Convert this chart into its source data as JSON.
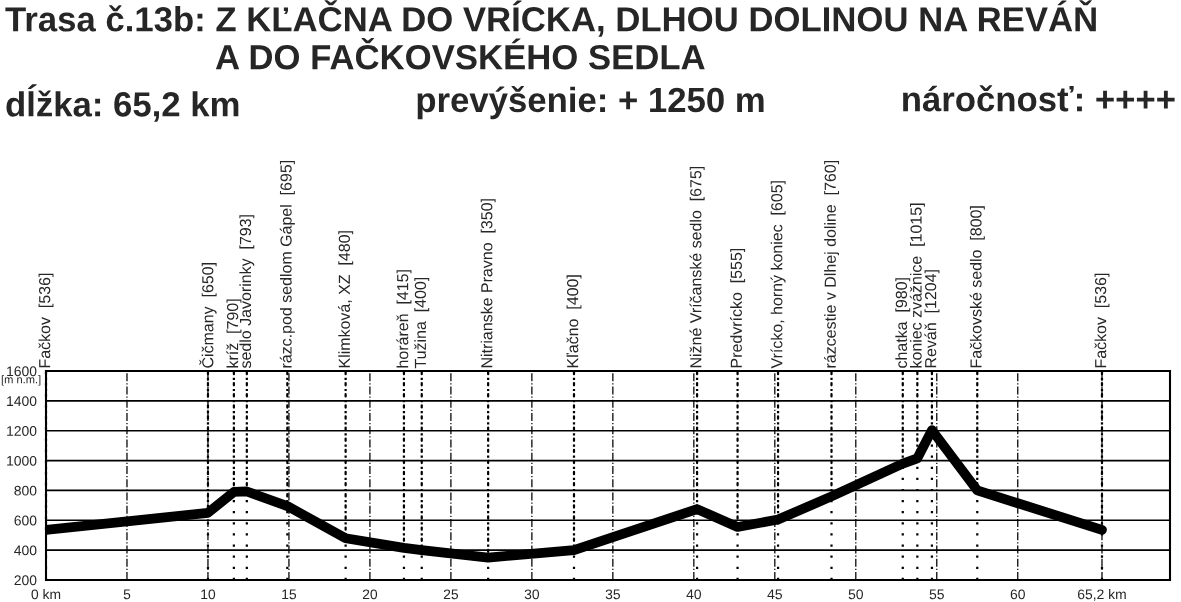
{
  "chart_data": {
    "type": "line",
    "title": "Trasa č.13b: Z KĽAČNA DO VRÍCKA, DLHOU DOLINOU NA REVÁŇ\nA DO FAČKOVSKÉHO SEDLA",
    "ylabel": "[m n.m.]",
    "annotations": [
      "dĺžka: 65,2 km",
      "prevýšenie: + 1250 m",
      "náročnosť: ++++",
      {
        "text": "Fačkov  [536]",
        "x": 0,
        "y": 536
      },
      {
        "text": "Čičmany  [650]",
        "x": 10.0,
        "y": 650
      },
      {
        "text": "kríž  [790]",
        "x": 11.6,
        "y": 790
      },
      {
        "text": "sedlo Javorinky  [793]",
        "x": 12.4,
        "y": 793
      },
      {
        "text": "rázc.pod sedlom Gápel  [695]",
        "x": 14.9,
        "y": 695
      },
      {
        "text": "Klimková, XZ  [480]",
        "x": 18.5,
        "y": 480
      },
      {
        "text": "horáreň  [415]",
        "x": 22.1,
        "y": 415
      },
      {
        "text": "Tužina  [400]",
        "x": 23.2,
        "y": 400
      },
      {
        "text": "Nitrianske Pravno  [350]",
        "x": 27.3,
        "y": 350
      },
      {
        "text": "Kľačno  [400]",
        "x": 32.6,
        "y": 400
      },
      {
        "text": "Nižné Vríčanské sedlo  [675]",
        "x": 40.2,
        "y": 675
      },
      {
        "text": "Predvrícko  [555]",
        "x": 42.7,
        "y": 555
      },
      {
        "text": "Vrícko, horný koniec  [605]",
        "x": 45.2,
        "y": 605
      },
      {
        "text": "rázcestie v Dlhej doline  [760]",
        "x": 48.5,
        "y": 760
      },
      {
        "text": "chatka  [980]",
        "x": 52.9,
        "y": 980
      },
      {
        "text": "koniec zvážnice  [1015]",
        "x": 53.8,
        "y": 1015
      },
      {
        "text": "Reváň  [1204]",
        "x": 54.7,
        "y": 1204
      },
      {
        "text": "Fačkovské sedlo  [800]",
        "x": 57.5,
        "y": 800
      },
      {
        "text": "Fačkov  [536]",
        "x": 65.2,
        "y": 536
      }
    ],
    "series": [
      {
        "color": "#000000",
        "x": [
          0,
          10.0,
          11.6,
          12.4,
          14.9,
          18.5,
          22.1,
          23.2,
          27.3,
          32.6,
          40.2,
          42.7,
          45.2,
          48.5,
          52.9,
          53.8,
          54.7,
          57.5,
          65.2
        ],
        "values": [
          536,
          650,
          790,
          793,
          695,
          480,
          415,
          400,
          350,
          400,
          675,
          555,
          605,
          760,
          980,
          1015,
          1204,
          800,
          536
        ]
      }
    ],
    "xlim": [
      0,
      69.4
    ],
    "xticks": [
      {
        "value": 0,
        "label": "0 km"
      },
      5,
      10,
      15,
      20,
      25,
      30,
      35,
      40,
      45,
      50,
      55,
      60,
      {
        "value": 65.2,
        "label": "65,2 km"
      }
    ],
    "ylim": [
      200,
      1600
    ],
    "yticks": [
      200,
      400,
      600,
      800,
      1000,
      1200,
      1400,
      1600
    ],
    "grid": true,
    "marker": "none",
    "line_style": "solid"
  }
}
